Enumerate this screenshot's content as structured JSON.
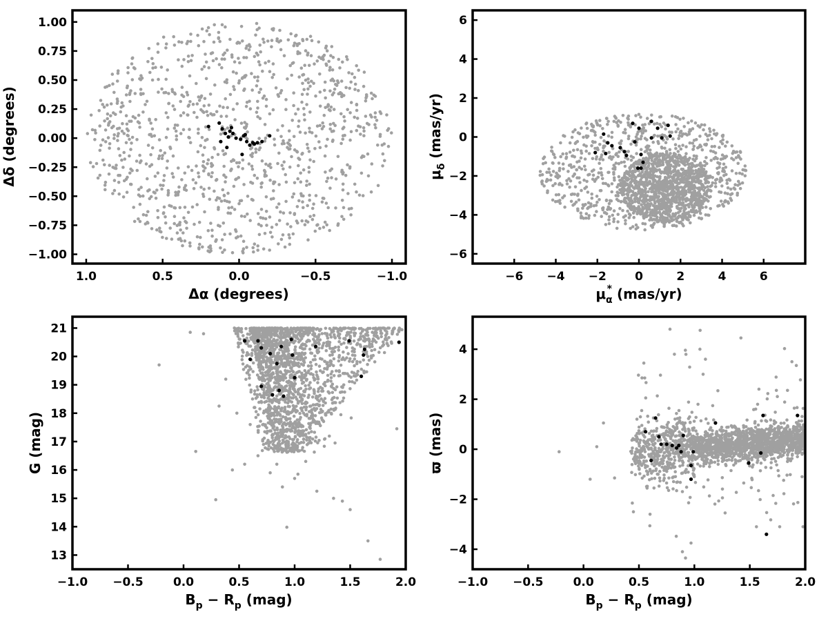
{
  "chart_data": [
    {
      "type": "scatter",
      "xlabel": "Δα (degrees)",
      "ylabel": "Δδ (degrees)",
      "xlim": [
        1.09,
        -1.09
      ],
      "ylim": [
        -1.08,
        1.1
      ],
      "x_ticks": [
        1.0,
        0.5,
        0.0,
        -0.5,
        -1.0
      ],
      "x_tick_labels": [
        "1.0",
        "0.5",
        "0.0",
        "−0.5",
        "−1.0"
      ],
      "y_ticks": [
        1.0,
        0.75,
        0.5,
        0.25,
        0.0,
        -0.25,
        -0.5,
        -0.75,
        -1.0
      ],
      "y_tick_labels": [
        "1.00",
        "0.75",
        "0.50",
        "0.25",
        "0.00",
        "−0.25",
        "−0.50",
        "−0.75",
        "−1.00"
      ],
      "field": {
        "shape": "disk",
        "center": [
          0,
          0
        ],
        "radius": 1.0,
        "count": 1100,
        "color": "#a0a0a0"
      },
      "members": {
        "color": "#000000",
        "x": [
          0.2,
          0.13,
          0.11,
          0.09,
          0.08,
          0.07,
          0.06,
          0.05,
          0.04,
          0.02,
          0.12,
          -0.01,
          -0.03,
          -0.05,
          -0.07,
          -0.09,
          -0.1,
          -0.12,
          -0.15,
          -0.2,
          -0.02,
          -0.04
        ],
        "y": [
          0.1,
          0.13,
          0.08,
          0.04,
          -0.08,
          0.01,
          0.06,
          0.09,
          0.04,
          0.0,
          -0.03,
          -0.01,
          0.02,
          -0.03,
          -0.06,
          -0.04,
          -0.05,
          -0.04,
          -0.03,
          0.02,
          -0.14,
          0.03
        ]
      }
    },
    {
      "type": "scatter",
      "xlabel": "μα* (mas/yr)",
      "xlabel_parts": {
        "main": "μ",
        "sub": "α",
        "sup": "*",
        "rest": " (mas/yr)"
      },
      "ylabel": "μδ (mas/yr)",
      "ylabel_parts": {
        "main": "μ",
        "sub": "δ",
        "rest": " (mas/yr)"
      },
      "xlim": [
        -8,
        8
      ],
      "ylim": [
        -6.5,
        6.5
      ],
      "x_ticks": [
        -6,
        -4,
        -2,
        0,
        2,
        4,
        6
      ],
      "x_tick_labels": [
        "−6",
        "−4",
        "−2",
        "0",
        "2",
        "4",
        "6"
      ],
      "y_ticks": [
        6,
        4,
        2,
        0,
        -2,
        -4,
        -6
      ],
      "y_tick_labels": [
        "6",
        "4",
        "2",
        "0",
        "−2",
        "−4",
        "−6"
      ],
      "field": {
        "shape": "ellipse",
        "center": [
          0.2,
          -1.8
        ],
        "radii": [
          5.0,
          3.0
        ],
        "count": 900,
        "dense_center": [
          1.3,
          -2.6
        ],
        "dense_radii": [
          2.2,
          1.8
        ],
        "dense_count": 1000,
        "color": "#a0a0a0"
      },
      "members": {
        "color": "#000000",
        "x": [
          -2.1,
          -1.7,
          -1.6,
          -1.5,
          -1.3,
          -0.9,
          -0.7,
          -0.6,
          -0.3,
          -0.2,
          0.0,
          0.1,
          0.2,
          0.6,
          0.6,
          0.9,
          1.1,
          1.4,
          1.5,
          0.1,
          -0.05
        ],
        "y": [
          -0.8,
          0.15,
          -0.85,
          -0.3,
          -0.45,
          -0.55,
          -0.75,
          -0.95,
          0.7,
          -0.25,
          0.45,
          -0.9,
          -1.3,
          0.8,
          -0.05,
          0.45,
          -0.05,
          0.6,
          0.05,
          -1.6,
          -1.6
        ]
      }
    },
    {
      "type": "scatter",
      "xlabel": "Bp − Rp (mag)",
      "xlabel_parts": {
        "a": "B",
        "a_sub": "p",
        "op": " − ",
        "b": "R",
        "b_sub": "p",
        "rest": " (mag)"
      },
      "ylabel": "G (mag)",
      "xlim": [
        -1.0,
        2.0
      ],
      "ylim": [
        12.5,
        21.4
      ],
      "x_ticks": [
        -1.0,
        -0.5,
        0.0,
        0.5,
        1.0,
        1.5,
        2.0
      ],
      "x_tick_labels": [
        "−1.0",
        "−0.5",
        "0.0",
        "0.5",
        "1.0",
        "1.5",
        "2.0"
      ],
      "y_ticks": [
        21,
        20,
        19,
        18,
        17,
        16,
        15,
        14,
        13
      ],
      "y_tick_labels": [
        "21",
        "20",
        "19",
        "18",
        "17",
        "16",
        "15",
        "14",
        "13"
      ],
      "field": {
        "shape": "cmd",
        "count": 1900,
        "color": "#a0a0a0",
        "outliers_x": [
          -0.22,
          0.06,
          0.11,
          0.18,
          0.29,
          0.32,
          0.38,
          0.44,
          0.48,
          0.55,
          0.6,
          0.67,
          0.72,
          0.78,
          0.84,
          0.89,
          0.93,
          1.0,
          1.03,
          1.1,
          1.2,
          1.35,
          1.43,
          1.5,
          1.66,
          1.77,
          1.92
        ],
        "outliers_y": [
          19.7,
          20.85,
          16.65,
          20.8,
          14.95,
          18.25,
          19.2,
          16.0,
          18.0,
          16.2,
          17.6,
          16.5,
          16.9,
          15.9,
          16.2,
          15.4,
          13.98,
          15.7,
          15.85,
          16.3,
          15.25,
          15.0,
          14.9,
          14.6,
          13.5,
          12.85,
          17.45
        ]
      },
      "members": {
        "color": "#000000",
        "x": [
          0.55,
          0.6,
          0.67,
          0.7,
          0.78,
          0.84,
          0.88,
          0.97,
          0.98,
          1.0,
          1.19,
          1.49,
          1.6,
          1.62,
          1.63,
          1.94,
          0.7,
          0.8,
          0.86,
          0.9
        ],
        "y": [
          20.55,
          19.9,
          20.55,
          20.3,
          20.1,
          19.75,
          20.35,
          20.6,
          20.05,
          19.25,
          20.35,
          20.55,
          19.3,
          20.05,
          20.25,
          20.5,
          18.95,
          18.65,
          18.8,
          18.6
        ]
      }
    },
    {
      "type": "scatter",
      "xlabel": "Bp − Rp (mag)",
      "xlabel_parts": {
        "a": "B",
        "a_sub": "p",
        "op": " − ",
        "b": "R",
        "b_sub": "p",
        "rest": " (mag)"
      },
      "ylabel": "ϖ (mas)",
      "xlim": [
        -1.0,
        2.0
      ],
      "ylim": [
        -4.8,
        5.3
      ],
      "x_ticks": [
        -1.0,
        -0.5,
        0.0,
        0.5,
        1.0,
        1.5,
        2.0
      ],
      "x_tick_labels": [
        "−1.0",
        "−0.5",
        "0.0",
        "0.5",
        "1.0",
        "1.5",
        "2.0"
      ],
      "y_ticks": [
        4,
        2,
        0,
        -2,
        -4
      ],
      "y_tick_labels": [
        "4",
        "2",
        "0",
        "−2",
        "−4"
      ],
      "field": {
        "shape": "parallax",
        "count": 1900,
        "color": "#a0a0a0",
        "outliers_x": [
          -0.22,
          0.06,
          0.12,
          0.18,
          0.28,
          0.45,
          0.6,
          0.78,
          0.82,
          0.92,
          0.97,
          1.05,
          1.1,
          1.42,
          1.56,
          1.77,
          1.88,
          1.92,
          1.98
        ],
        "outliers_y": [
          -0.1,
          -1.2,
          0.1,
          1.05,
          -1.15,
          -2.5,
          -2.6,
          4.8,
          3.8,
          -4.35,
          -3.75,
          4.0,
          3.6,
          4.45,
          -3.1,
          -3.1,
          3.5,
          3.35,
          -3.1
        ]
      },
      "members": {
        "color": "#000000",
        "x": [
          0.56,
          0.61,
          0.65,
          0.68,
          0.7,
          0.75,
          0.8,
          0.84,
          0.86,
          0.88,
          0.9,
          0.97,
          0.97,
          0.99,
          1.19,
          1.49,
          1.6,
          1.62,
          1.65,
          1.93
        ],
        "y": [
          0.7,
          -0.45,
          1.25,
          0.5,
          0.2,
          0.2,
          0.15,
          0.05,
          0.15,
          -0.1,
          0.55,
          -0.65,
          -1.2,
          -0.1,
          1.05,
          -0.55,
          -0.15,
          1.35,
          -3.4,
          1.35
        ]
      }
    }
  ]
}
